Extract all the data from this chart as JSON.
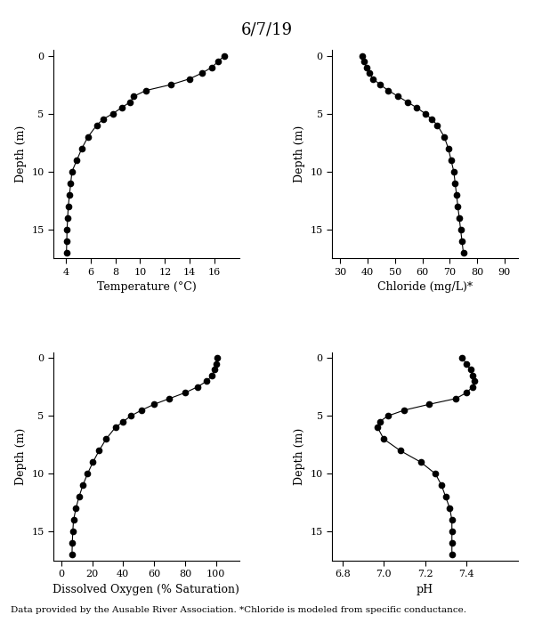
{
  "title": "6/7/19",
  "title_fontsize": 13,
  "footnote": "Data provided by the Ausable River Association. *Chloride is modeled from specific conductance.",
  "footnote_fontsize": 7.5,
  "temp": {
    "depth": [
      0,
      0.5,
      1,
      1.5,
      2,
      2.5,
      3,
      3.5,
      4,
      4.5,
      5,
      5.5,
      6,
      7,
      8,
      9,
      10,
      11,
      12,
      13,
      14,
      15,
      16,
      17
    ],
    "values": [
      16.8,
      16.3,
      15.8,
      15.0,
      14.0,
      12.5,
      10.5,
      9.5,
      9.2,
      8.5,
      7.8,
      7.0,
      6.5,
      5.8,
      5.3,
      4.9,
      4.5,
      4.4,
      4.3,
      4.2,
      4.15,
      4.1,
      4.08,
      4.05
    ],
    "xlabel": "Temperature (°C)",
    "xlim": [
      3,
      18
    ],
    "xticks": [
      4,
      6,
      8,
      10,
      12,
      14,
      16
    ],
    "ylim": [
      17.5,
      -0.5
    ],
    "yticks": [
      0,
      5,
      10,
      15
    ],
    "ylabel": "Depth (m)"
  },
  "chloride": {
    "depth": [
      0,
      0.5,
      1,
      1.5,
      2,
      2.5,
      3,
      3.5,
      4,
      4.5,
      5,
      5.5,
      6,
      7,
      8,
      9,
      10,
      11,
      12,
      13,
      14,
      15,
      16,
      17
    ],
    "values": [
      38.0,
      38.5,
      39.5,
      40.5,
      42.0,
      44.5,
      47.5,
      51.0,
      54.5,
      58.0,
      61.0,
      63.5,
      65.5,
      68.0,
      69.5,
      70.5,
      71.5,
      72.0,
      72.5,
      73.0,
      73.5,
      74.0,
      74.5,
      75.0
    ],
    "xlabel": "Chloride (mg/L)*",
    "xlim": [
      27,
      95
    ],
    "xticks": [
      30,
      40,
      50,
      60,
      70,
      80,
      90
    ],
    "ylim": [
      17.5,
      -0.5
    ],
    "yticks": [
      0,
      5,
      10,
      15
    ],
    "ylabel": "Depth (m)"
  },
  "do": {
    "depth": [
      0,
      0.5,
      1,
      1.5,
      2,
      2.5,
      3,
      3.5,
      4,
      4.5,
      5,
      5.5,
      6,
      7,
      8,
      9,
      10,
      11,
      12,
      13,
      14,
      15,
      16,
      17
    ],
    "values": [
      100.5,
      100.0,
      99.0,
      97.5,
      94.0,
      88.0,
      80.0,
      70.0,
      60.0,
      52.0,
      45.0,
      40.0,
      35.0,
      29.0,
      24.5,
      20.5,
      17.0,
      14.0,
      11.5,
      9.5,
      8.0,
      7.5,
      7.2,
      7.0
    ],
    "xlabel": "Dissolved Oxygen (% Saturation)",
    "xlim": [
      -5,
      115
    ],
    "xticks": [
      0,
      20,
      40,
      60,
      80,
      100
    ],
    "ylim": [
      17.5,
      -0.5
    ],
    "yticks": [
      0,
      5,
      10,
      15
    ],
    "ylabel": "Depth (m)"
  },
  "ph": {
    "depth": [
      0,
      0.5,
      1,
      1.5,
      2,
      2.5,
      3,
      3.5,
      4,
      4.5,
      5,
      5.5,
      6,
      7,
      8,
      9,
      10,
      11,
      12,
      13,
      14,
      15,
      16,
      17
    ],
    "values": [
      7.38,
      7.4,
      7.42,
      7.43,
      7.44,
      7.43,
      7.4,
      7.35,
      7.22,
      7.1,
      7.02,
      6.98,
      6.97,
      7.0,
      7.08,
      7.18,
      7.25,
      7.28,
      7.3,
      7.32,
      7.33,
      7.33,
      7.33,
      7.33
    ],
    "xlabel": "pH",
    "xlim": [
      6.75,
      7.65
    ],
    "xticks": [
      6.8,
      7.0,
      7.2,
      7.4
    ],
    "ylim": [
      17.5,
      -0.5
    ],
    "yticks": [
      0,
      5,
      10,
      15
    ],
    "ylabel": "Depth (m)"
  },
  "line_color": "#000000",
  "marker": "o",
  "markersize": 4.5,
  "linewidth": 0.8,
  "markerfacecolor": "#000000"
}
